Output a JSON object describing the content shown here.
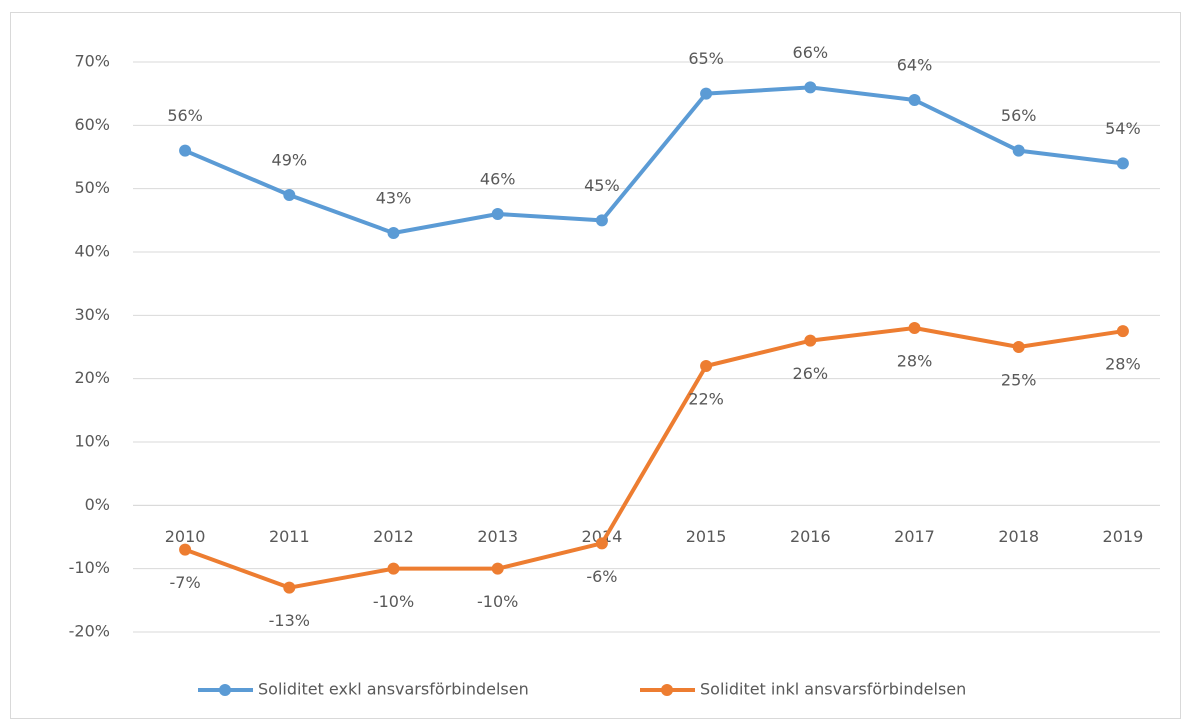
{
  "chart_data": {
    "type": "line",
    "categories": [
      "2010",
      "2011",
      "2012",
      "2013",
      "2014",
      "2015",
      "2016",
      "2017",
      "2018",
      "2019"
    ],
    "series": [
      {
        "name": "Soliditet exkl ansvarsförbindelsen",
        "color": "#5b9bd5",
        "values": [
          56,
          49,
          43,
          46,
          45,
          65,
          66,
          64,
          56,
          54
        ],
        "value_labels": [
          "56%",
          "49%",
          "43%",
          "46%",
          "45%",
          "65%",
          "66%",
          "64%",
          "56%",
          "54%"
        ]
      },
      {
        "name": "Soliditet inkl ansvarsförbindelsen",
        "color": "#ed7d31",
        "values": [
          -7,
          -13,
          -10,
          -10,
          -6,
          22,
          26,
          28,
          25,
          27.5
        ],
        "value_labels": [
          "-7%",
          "-13%",
          "-10%",
          "-10%",
          "-6%",
          "22%",
          "26%",
          "28%",
          "25%",
          "28%"
        ]
      }
    ],
    "ylim": [
      -20,
      70
    ],
    "yticks": [
      {
        "value": -20,
        "label": "-20%"
      },
      {
        "value": -10,
        "label": "-10%"
      },
      {
        "value": 0,
        "label": "0%"
      },
      {
        "value": 10,
        "label": "10%"
      },
      {
        "value": 20,
        "label": "20%"
      },
      {
        "value": 30,
        "label": "30%"
      },
      {
        "value": 40,
        "label": "40%"
      },
      {
        "value": 50,
        "label": "50%"
      },
      {
        "value": 60,
        "label": "60%"
      },
      {
        "value": 70,
        "label": "70%"
      }
    ],
    "grid": true,
    "legend": "bottom"
  }
}
